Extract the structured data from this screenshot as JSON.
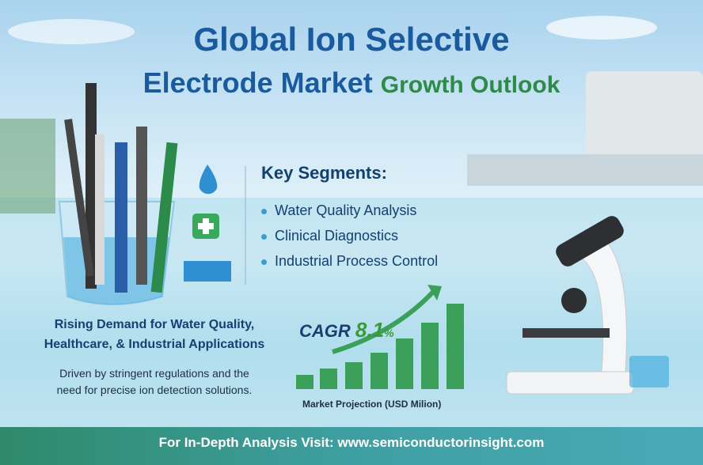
{
  "header": {
    "title_line1": "Global Ion Selective",
    "title_line2": "Electrode Market",
    "title_line2_accent": "Growth Outlook"
  },
  "segments": {
    "heading": "Key Segments:",
    "items": [
      "Water Quality Analysis",
      "Clinical Diagnostics",
      "Industrial Process Control"
    ]
  },
  "demand": {
    "lines": [
      "Rising Demand for Water Quality,",
      "Healthcare, & Industrial Applications"
    ],
    "description": [
      "Driven by stringent regulations and the",
      "need for precise ion detection solutions."
    ]
  },
  "growth": {
    "cagr_label": "CAGR",
    "cagr_value": "8.1",
    "cagr_unit": "%",
    "caption": "Market Projection (USD Milion)"
  },
  "footer": {
    "label": "For In-Depth Analysis Visit:",
    "url": "www.semiconductorinsight.com"
  }
}
